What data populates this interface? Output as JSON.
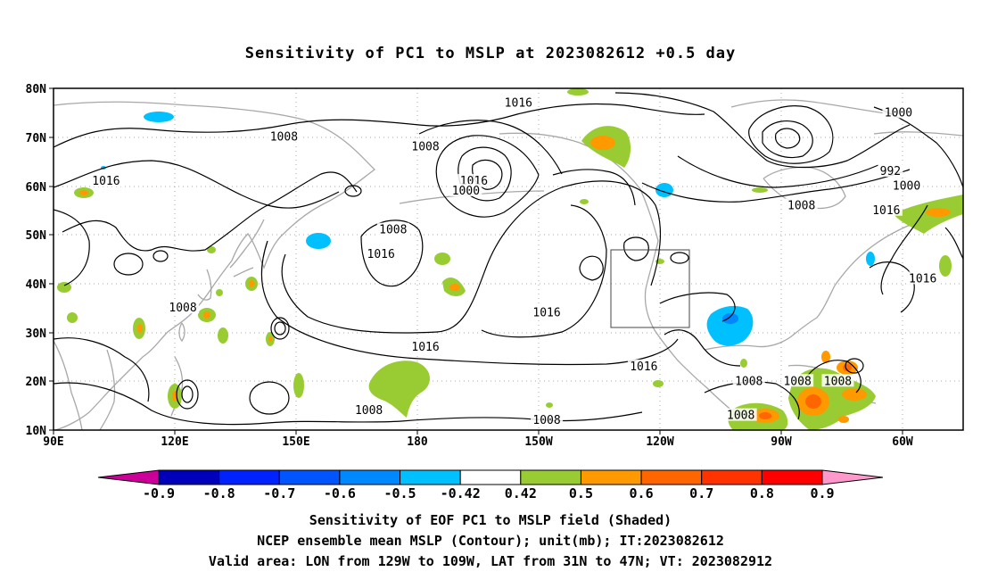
{
  "title": "Sensitivity of PC1 to MSLP at 2023082612 +0.5 day",
  "lat_ticks": [
    "80N",
    "70N",
    "60N",
    "50N",
    "40N",
    "30N",
    "20N",
    "10N"
  ],
  "lon_ticks": [
    "90E",
    "120E",
    "150E",
    "180",
    "150W",
    "120W",
    "90W",
    "60W"
  ],
  "contour_labels": [
    {
      "text": "1016",
      "lon": -155,
      "lat": 77
    },
    {
      "text": "1000",
      "lon": -61,
      "lat": 75
    },
    {
      "text": "1008",
      "lon": 147,
      "lat": 70
    },
    {
      "text": "1008",
      "lon": -178,
      "lat": 68
    },
    {
      "text": "992",
      "lon": -63,
      "lat": 63
    },
    {
      "text": "1016",
      "lon": 103,
      "lat": 61
    },
    {
      "text": "1016",
      "lon": -166,
      "lat": 61
    },
    {
      "text": "1000",
      "lon": -168,
      "lat": 59
    },
    {
      "text": "1000",
      "lon": -59,
      "lat": 60
    },
    {
      "text": "1008",
      "lon": -85,
      "lat": 56
    },
    {
      "text": "1016",
      "lon": -64,
      "lat": 55
    },
    {
      "text": "1008",
      "lon": 174,
      "lat": 51
    },
    {
      "text": "1016",
      "lon": 171,
      "lat": 46
    },
    {
      "text": "1016",
      "lon": -55,
      "lat": 41
    },
    {
      "text": "1008",
      "lon": 122,
      "lat": 35
    },
    {
      "text": "1016",
      "lon": -148,
      "lat": 34
    },
    {
      "text": "1016",
      "lon": -178,
      "lat": 27
    },
    {
      "text": "1016",
      "lon": -124,
      "lat": 23
    },
    {
      "text": "1008",
      "lon": -98,
      "lat": 20
    },
    {
      "text": "1008",
      "lon": -86,
      "lat": 20
    },
    {
      "text": "1008",
      "lon": -76,
      "lat": 20
    },
    {
      "text": "1008",
      "lon": 168,
      "lat": 14
    },
    {
      "text": "1008",
      "lon": -148,
      "lat": 12
    },
    {
      "text": "1008",
      "lon": -100,
      "lat": 13
    }
  ],
  "colorbar": {
    "colors": [
      "#cc0099",
      "#0000bb",
      "#0022ff",
      "#0055ff",
      "#0088ff",
      "#00c0ff",
      "#ffffff",
      "#99cc33",
      "#ff9900",
      "#ff6600",
      "#ff3300",
      "#ff0000",
      "#ff99cc"
    ],
    "labels": [
      "-0.9",
      "-0.8",
      "-0.7",
      "-0.6",
      "-0.5",
      "-0.42",
      "0.42",
      "0.5",
      "0.6",
      "0.7",
      "0.8",
      "0.9"
    ]
  },
  "captions": [
    "Sensitivity of EOF PC1 to MSLP field (Shaded)",
    "NCEP ensemble mean MSLP (Contour); unit(mb); IT:2023082612",
    "Valid area: LON from 129W to 109W, LAT from 31N to 47N; VT: 2023082912"
  ]
}
